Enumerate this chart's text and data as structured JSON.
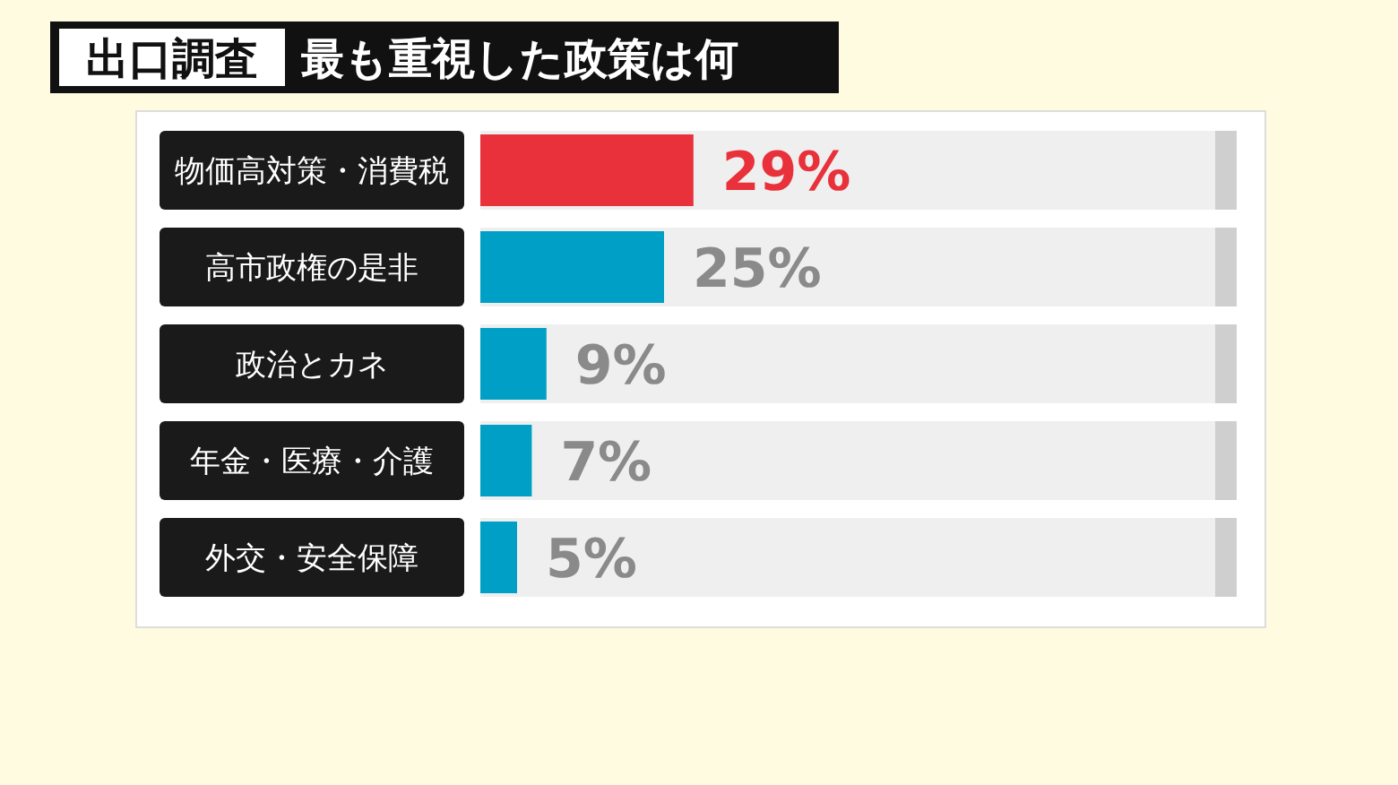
{
  "chart_data": {
    "type": "bar",
    "orientation": "horizontal",
    "title": "出口調査",
    "subtitle": "最も重視した政策は何",
    "categories": [
      "物価高対策・消費税",
      "高市政権の是非",
      "政治とカネ",
      "年金・医療・介護",
      "外交・安全保障"
    ],
    "values": [
      29,
      25,
      9,
      7,
      5
    ],
    "colors": [
      "#e8313a",
      "#00a0c6",
      "#00a0c6",
      "#00a0c6",
      "#00a0c6"
    ],
    "value_labels": [
      "29%",
      "25%",
      "9%",
      "7%",
      "5%"
    ],
    "xlim": [
      0,
      100
    ],
    "grid": false
  }
}
